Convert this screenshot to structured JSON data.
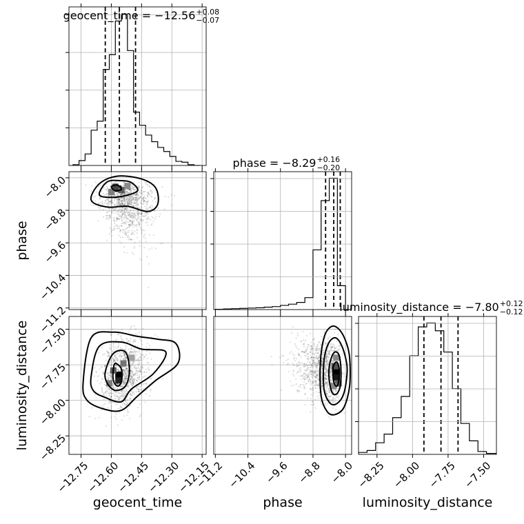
{
  "chart_data": {
    "type": "corner",
    "parameters": [
      "geocent_time",
      "phase",
      "luminosity_distance"
    ],
    "axis_labels": [
      "geocent_time",
      "phase",
      "luminosity_distance"
    ],
    "ranges": [
      [
        -12.81,
        -12.13
      ],
      [
        -11.24,
        -7.85
      ],
      [
        -8.38,
        -7.41
      ]
    ],
    "ticks": [
      [
        -12.75,
        -12.6,
        -12.45,
        -12.3,
        -12.15
      ],
      [
        -11.2,
        -10.4,
        -9.6,
        -8.8,
        -8.0
      ],
      [
        -8.25,
        -8.0,
        -7.75,
        -7.5
      ]
    ],
    "tick_labels": [
      [
        "−12.75",
        "−12.60",
        "−12.45",
        "−12.30",
        "−12.15"
      ],
      [
        "−11.2",
        "−10.4",
        "−9.6",
        "−8.8",
        "−8.0"
      ],
      [
        "−8.25",
        "−8.00",
        "−7.75",
        "−7.50"
      ]
    ],
    "titles": [
      {
        "main": "geocent_time = −12.56",
        "sup": "+0.08",
        "sub": "−0.07"
      },
      {
        "main": "phase = −8.29",
        "sup": "+0.16",
        "sub": "−0.20"
      },
      {
        "main": "luminosity_distance = −7.80",
        "sup": "+0.12",
        "sub": "−0.12"
      }
    ],
    "quantiles": [
      [
        -12.63,
        -12.56,
        -12.48
      ],
      [
        -8.49,
        -8.29,
        -8.13
      ],
      [
        -7.92,
        -7.8,
        -7.68
      ]
    ],
    "histograms": [
      {
        "edges": [
          -12.79,
          -12.76,
          -12.73,
          -12.7,
          -12.67,
          -12.64,
          -12.61,
          -12.58,
          -12.55,
          -12.52,
          -12.49,
          -12.46,
          -12.43,
          -12.4,
          -12.37,
          -12.34,
          -12.31,
          -12.28,
          -12.25,
          -12.22,
          -12.19,
          -12.16
        ],
        "counts": [
          1,
          6,
          14,
          43,
          54,
          117,
          135,
          176,
          184,
          140,
          65,
          49,
          37,
          29,
          22,
          17,
          11,
          5,
          4,
          1,
          0
        ]
      },
      {
        "edges": [
          -11.2,
          -11.0,
          -10.8,
          -10.6,
          -10.4,
          -10.2,
          -10.0,
          -9.8,
          -9.6,
          -9.4,
          -9.2,
          -9.0,
          -8.8,
          -8.6,
          -8.4,
          -8.2,
          -8.0,
          -7.85
        ],
        "counts": [
          1,
          2,
          3,
          4,
          5,
          6,
          8,
          10,
          14,
          18,
          24,
          40,
          200,
          365,
          440,
          80,
          0
        ]
      },
      {
        "edges": [
          -8.38,
          -8.32,
          -8.26,
          -8.2,
          -8.14,
          -8.08,
          -8.02,
          -7.96,
          -7.9,
          -7.84,
          -7.78,
          -7.72,
          -7.66,
          -7.6,
          -7.54,
          -7.48,
          -7.41
        ],
        "counts": [
          2,
          4,
          12,
          21,
          38,
          60,
          102,
          132,
          136,
          128,
          106,
          68,
          32,
          14,
          3,
          1
        ]
      }
    ],
    "contours": {
      "1_0": [
        [
          [
            -12.6,
            -8.22
          ],
          [
            -12.57,
            -8.18
          ],
          [
            -12.55,
            -8.28
          ],
          [
            -12.58,
            -8.32
          ]
        ],
        [
          [
            -12.66,
            -8.4
          ],
          [
            -12.62,
            -8.1
          ],
          [
            -12.55,
            -8.07
          ],
          [
            -12.5,
            -8.12
          ],
          [
            -12.47,
            -8.32
          ],
          [
            -12.54,
            -8.45
          ],
          [
            -12.62,
            -8.48
          ]
        ],
        [
          [
            -12.7,
            -8.55
          ],
          [
            -12.66,
            -8.15
          ],
          [
            -12.57,
            -7.96
          ],
          [
            -12.45,
            -8.03
          ],
          [
            -12.38,
            -8.25
          ],
          [
            -12.37,
            -8.65
          ],
          [
            -12.42,
            -8.83
          ],
          [
            -12.52,
            -8.7
          ],
          [
            -12.62,
            -8.72
          ]
        ]
      ],
      "2_0": [
        [
          [
            -12.58,
            -7.74
          ],
          [
            -12.55,
            -7.78
          ],
          [
            -12.55,
            -7.87
          ],
          [
            -12.57,
            -7.9
          ],
          [
            -12.59,
            -7.86
          ],
          [
            -12.59,
            -7.78
          ]
        ],
        [
          [
            -12.63,
            -7.8
          ],
          [
            -12.59,
            -7.67
          ],
          [
            -12.53,
            -7.66
          ],
          [
            -12.51,
            -7.79
          ],
          [
            -12.53,
            -7.9
          ],
          [
            -12.58,
            -7.93
          ],
          [
            -12.62,
            -7.88
          ]
        ],
        [
          [
            -12.7,
            -7.83
          ],
          [
            -12.66,
            -7.62
          ],
          [
            -12.55,
            -7.59
          ],
          [
            -12.45,
            -7.64
          ],
          [
            -12.33,
            -7.66
          ],
          [
            -12.39,
            -7.81
          ],
          [
            -12.5,
            -7.92
          ],
          [
            -12.55,
            -8.01
          ],
          [
            -12.63,
            -7.98
          ],
          [
            -12.69,
            -7.93
          ]
        ],
        [
          [
            -12.74,
            -7.88
          ],
          [
            -12.7,
            -7.56
          ],
          [
            -12.59,
            -7.52
          ],
          [
            -12.47,
            -7.55
          ],
          [
            -12.37,
            -7.57
          ],
          [
            -12.28,
            -7.6
          ],
          [
            -12.27,
            -7.74
          ],
          [
            -12.38,
            -7.86
          ],
          [
            -12.47,
            -7.97
          ],
          [
            -12.55,
            -8.07
          ],
          [
            -12.64,
            -8.06
          ],
          [
            -12.72,
            -8.0
          ]
        ]
      ],
      "2_1": [
        [
          [
            -8.3,
            -7.76
          ],
          [
            -8.22,
            -7.73
          ],
          [
            -8.16,
            -7.77
          ],
          [
            -8.16,
            -7.85
          ],
          [
            -8.21,
            -7.9
          ],
          [
            -8.28,
            -7.88
          ],
          [
            -8.31,
            -7.82
          ]
        ],
        [
          [
            -8.4,
            -7.76
          ],
          [
            -8.3,
            -7.67
          ],
          [
            -8.18,
            -7.67
          ],
          [
            -8.12,
            -7.75
          ],
          [
            -8.12,
            -7.88
          ],
          [
            -8.2,
            -7.95
          ],
          [
            -8.32,
            -7.95
          ],
          [
            -8.4,
            -7.86
          ]
        ],
        [
          [
            -8.53,
            -7.72
          ],
          [
            -8.42,
            -7.6
          ],
          [
            -8.26,
            -7.56
          ],
          [
            -8.12,
            -7.6
          ],
          [
            -8.0,
            -7.7
          ],
          [
            -7.96,
            -7.8
          ],
          [
            -8.04,
            -7.95
          ],
          [
            -8.2,
            -8.02
          ],
          [
            -8.38,
            -8.02
          ],
          [
            -8.53,
            -7.92
          ]
        ],
        [
          [
            -8.62,
            -7.74
          ],
          [
            -8.52,
            -7.55
          ],
          [
            -8.34,
            -7.48
          ],
          [
            -8.16,
            -7.5
          ],
          [
            -8.0,
            -7.58
          ],
          [
            -7.9,
            -7.7
          ],
          [
            -7.9,
            -7.9
          ],
          [
            -8.04,
            -8.05
          ],
          [
            -8.26,
            -8.1
          ],
          [
            -8.45,
            -8.08
          ],
          [
            -8.6,
            -7.97
          ]
        ]
      ]
    },
    "density_peaks": {
      "1_0": [
        [
          -12.565,
          -8.27,
          1.0
        ],
        [
          -12.58,
          -8.22,
          0.7
        ],
        [
          -12.55,
          -8.3,
          0.6
        ],
        [
          -12.6,
          -8.35,
          0.45
        ],
        [
          -12.52,
          -8.2,
          0.4
        ]
      ],
      "2_0": [
        [
          -12.565,
          -7.82,
          1.0
        ],
        [
          -12.565,
          -7.86,
          0.85
        ],
        [
          -12.59,
          -7.79,
          0.6
        ],
        [
          -12.54,
          -7.74,
          0.5
        ],
        [
          -12.61,
          -7.88,
          0.45
        ],
        [
          -12.5,
          -7.7,
          0.3
        ]
      ],
      "2_1": [
        [
          -8.22,
          -7.8,
          1.0
        ],
        [
          -8.22,
          -7.84,
          0.9
        ],
        [
          -8.26,
          -7.76,
          0.65
        ],
        [
          -8.18,
          -7.88,
          0.6
        ],
        [
          -8.3,
          -7.9,
          0.4
        ],
        [
          -8.22,
          -7.7,
          0.4
        ]
      ]
    }
  }
}
